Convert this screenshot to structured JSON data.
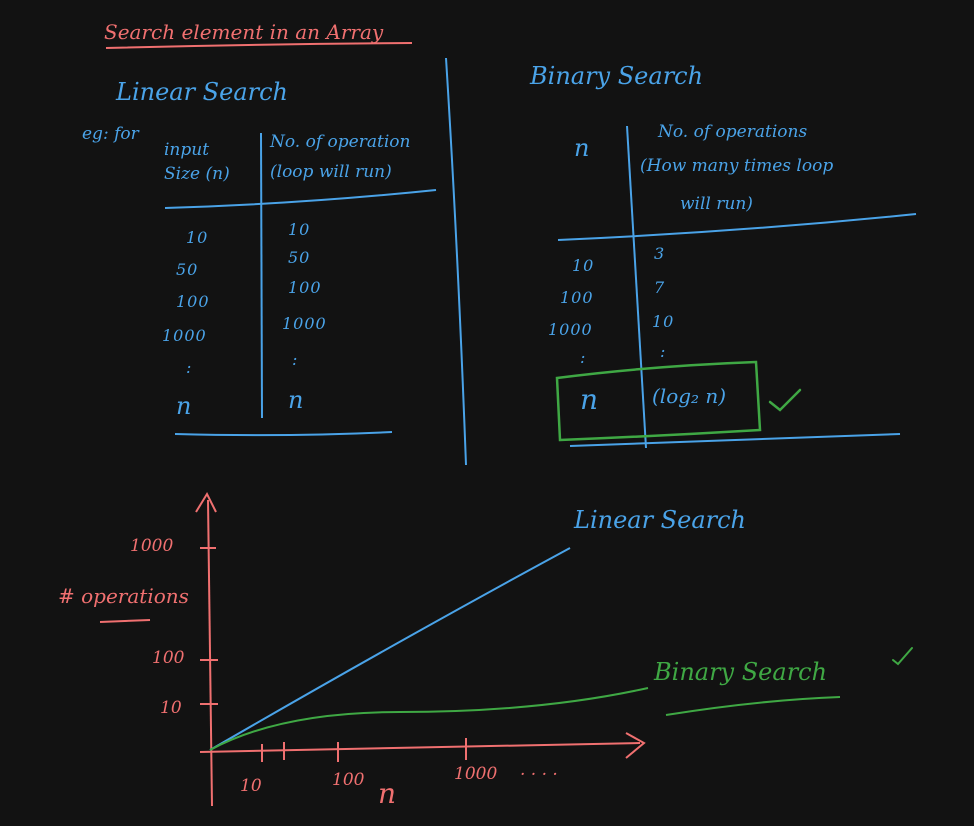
{
  "colors": {
    "background": "#121212",
    "blue": "#4aa3e8",
    "red": "#f07070",
    "green": "#3fa844",
    "check_green": "#3fa844"
  },
  "title": "Search element in an Array",
  "linear": {
    "heading": "Linear Search",
    "eg_label": "eg: for",
    "col1_header_line1": "input",
    "col1_header_line2": "Size (n)",
    "col2_header_line1": "No. of operation",
    "col2_header_line2": "(loop will run)",
    "rows": [
      {
        "input": "10",
        "ops": "10"
      },
      {
        "input": "50",
        "ops": "50"
      },
      {
        "input": "100",
        "ops": "100"
      },
      {
        "input": "1000",
        "ops": "1000"
      },
      {
        "input": ":",
        "ops": ":"
      },
      {
        "input": "n",
        "ops": "n"
      }
    ]
  },
  "binary": {
    "heading": "Binary Search",
    "col1_header": "n",
    "col2_header_line1": "No. of operations",
    "col2_header_line2": "(How many times loop",
    "col2_header_line3": "will run)",
    "rows": [
      {
        "n": "10",
        "ops": "3"
      },
      {
        "n": "100",
        "ops": "7"
      },
      {
        "n": "1000",
        "ops": "10"
      },
      {
        "n": ":",
        "ops": ":"
      }
    ],
    "highlight_n": "n",
    "highlight_ops": "(log₂ n)",
    "check": "✓"
  },
  "graph": {
    "y_label": "# operations",
    "x_label": "n",
    "y_ticks": [
      "1000",
      "100",
      "10"
    ],
    "x_ticks": [
      "10",
      "100",
      "1000",
      ". . . ."
    ],
    "linear_label": "Linear Search",
    "binary_label": "Binary Search",
    "binary_check": "✓"
  }
}
